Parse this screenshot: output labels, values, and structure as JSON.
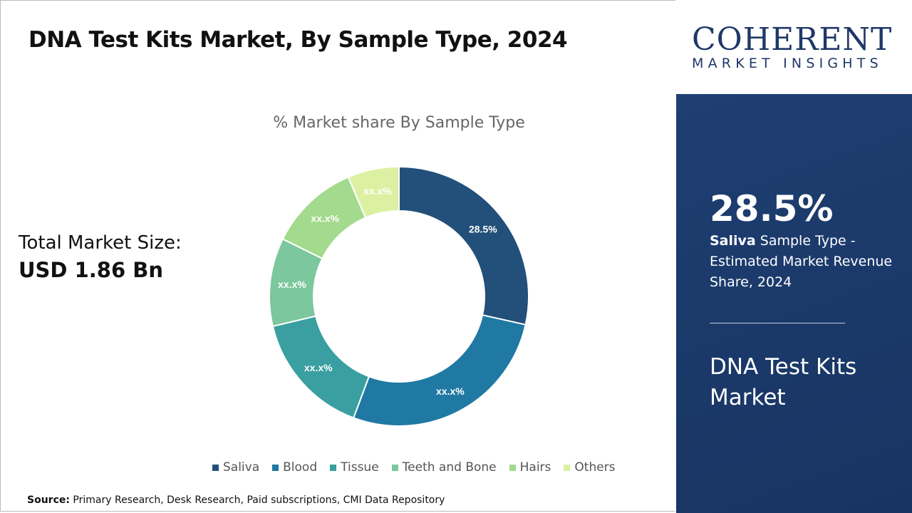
{
  "header": {
    "title": "DNA Test Kits Market, By Sample Type, 2024"
  },
  "total": {
    "label": "Total Market Size:",
    "value": "USD 1.86 Bn"
  },
  "logo": {
    "main": "COHERENT",
    "sub": "MARKET INSIGHTS"
  },
  "panel": {
    "highlight": "28.5%",
    "desc_bold": "Saliva",
    "desc_rest": " Sample Type - Estimated Market Revenue Share, 2024",
    "market_name": "DNA Test Kits Market"
  },
  "source": {
    "label": "Source:",
    "text": " Primary Research, Desk Research, Paid subscriptions, CMI Data Repository"
  },
  "chart_data": {
    "type": "pie",
    "donut": true,
    "title": "% Market share By Sample Type",
    "categories": [
      "Saliva",
      "Blood",
      "Tissue",
      "Teeth and Bone",
      "Hairs",
      "Others"
    ],
    "values": [
      28.5,
      27.2,
      15.6,
      11.0,
      11.3,
      6.4
    ],
    "data_labels": [
      "28.5%",
      "xx.x%",
      "xx.x%",
      "xx.x%",
      "xx.x%",
      "xx.x%"
    ],
    "colors": [
      "#22507b",
      "#1f79a3",
      "#3a9fa0",
      "#7cc79d",
      "#a3da8d",
      "#dcf0a2"
    ],
    "legend_placement": "bottom"
  }
}
